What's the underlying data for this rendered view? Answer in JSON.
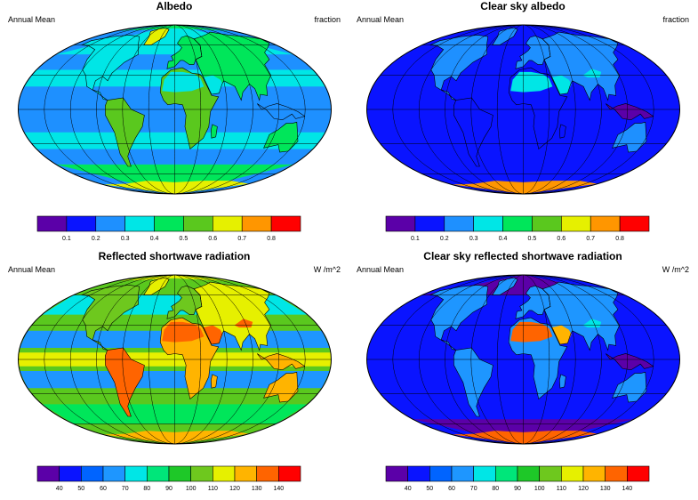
{
  "panels": [
    {
      "title": "Albedo",
      "left_label": "Annual Mean",
      "right_label": "fraction",
      "field": "albedo",
      "colorbar": {
        "ticks": [
          "0.1",
          "0.2",
          "0.3",
          "0.4",
          "0.5",
          "0.6",
          "0.7",
          "0.8"
        ],
        "colors": [
          "#5b00a8",
          "#0a14ff",
          "#1e90ff",
          "#00e6e6",
          "#00e65a",
          "#5ac81e",
          "#e6f000",
          "#ff9600",
          "#ff0000"
        ]
      }
    },
    {
      "title": "Clear sky albedo",
      "left_label": "Annual Mean",
      "right_label": "fraction",
      "field": "clear_albedo",
      "colorbar": {
        "ticks": [
          "0.1",
          "0.2",
          "0.3",
          "0.4",
          "0.5",
          "0.6",
          "0.7",
          "0.8"
        ],
        "colors": [
          "#5b00a8",
          "#0a14ff",
          "#1e90ff",
          "#00e6e6",
          "#00e65a",
          "#5ac81e",
          "#e6f000",
          "#ff9600",
          "#ff0000"
        ]
      }
    },
    {
      "title": "Reflected shortwave radiation",
      "left_label": "Annual Mean",
      "right_label": "W /m^2",
      "field": "reflected_sw",
      "colorbar": {
        "ticks": [
          "40",
          "50",
          "60",
          "70",
          "80",
          "90",
          "100",
          "110",
          "120",
          "130",
          "140"
        ],
        "colors": [
          "#5b00a8",
          "#0a14ff",
          "#0064ff",
          "#1e96ff",
          "#00e6e6",
          "#00e67a",
          "#1ec828",
          "#6ec81e",
          "#e6f000",
          "#ffb400",
          "#ff6400",
          "#ff0000"
        ]
      }
    },
    {
      "title": "Clear sky reflected shortwave radiation",
      "left_label": "Annual Mean",
      "right_label": "W /m^2",
      "field": "clear_reflected_sw",
      "colorbar": {
        "ticks": [
          "40",
          "50",
          "60",
          "70",
          "80",
          "90",
          "100",
          "110",
          "120",
          "130",
          "140"
        ],
        "colors": [
          "#5b00a8",
          "#0a14ff",
          "#0064ff",
          "#1e96ff",
          "#00e6e6",
          "#00e67a",
          "#1ec828",
          "#6ec81e",
          "#e6f000",
          "#ffb400",
          "#ff6400",
          "#ff0000"
        ]
      }
    }
  ]
}
